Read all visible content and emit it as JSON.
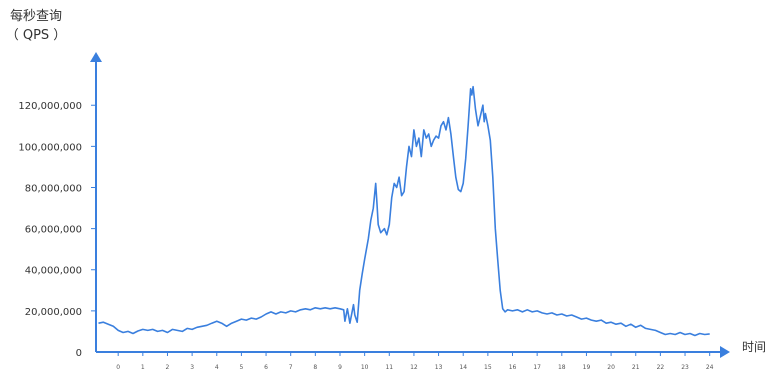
{
  "chart_data": {
    "type": "line",
    "title": "",
    "ylabel_line1": "每秒查询",
    "ylabel_line2": "（ QPS ）",
    "xlabel": "时间",
    "x_ticks": [
      "0",
      "1",
      "2",
      "3",
      "4",
      "5",
      "6",
      "7",
      "8",
      "9",
      "10",
      "11",
      "12",
      "13",
      "14",
      "15",
      "16",
      "17",
      "18",
      "19",
      "20",
      "21",
      "22",
      "23",
      "24"
    ],
    "y_ticks": [
      {
        "value": 0,
        "label": "0"
      },
      {
        "value": 20000000,
        "label": "20,000,000"
      },
      {
        "value": 40000000,
        "label": "40,000,000"
      },
      {
        "value": 60000000,
        "label": "60,000,000"
      },
      {
        "value": 80000000,
        "label": "80,000,000"
      },
      {
        "value": 100000000,
        "label": "100,000,000"
      },
      {
        "value": 120000000,
        "label": "120,000,000"
      }
    ],
    "xlim": [
      -0.9,
      24.5
    ],
    "ylim": [
      0,
      142000000
    ],
    "grid": false,
    "legend": "none",
    "series": [
      {
        "color": "#3a7fde",
        "points": [
          [
            -0.8,
            14000000
          ],
          [
            -0.6,
            14500000
          ],
          [
            -0.4,
            13500000
          ],
          [
            -0.2,
            12500000
          ],
          [
            0.0,
            10500000
          ],
          [
            0.2,
            9500000
          ],
          [
            0.4,
            10000000
          ],
          [
            0.6,
            9000000
          ],
          [
            0.8,
            10200000
          ],
          [
            1.0,
            11000000
          ],
          [
            1.2,
            10500000
          ],
          [
            1.4,
            11000000
          ],
          [
            1.6,
            10000000
          ],
          [
            1.8,
            10500000
          ],
          [
            2.0,
            9500000
          ],
          [
            2.2,
            11000000
          ],
          [
            2.4,
            10500000
          ],
          [
            2.6,
            10000000
          ],
          [
            2.8,
            11500000
          ],
          [
            3.0,
            11000000
          ],
          [
            3.2,
            12000000
          ],
          [
            3.4,
            12500000
          ],
          [
            3.6,
            13000000
          ],
          [
            3.8,
            14000000
          ],
          [
            4.0,
            15000000
          ],
          [
            4.2,
            14000000
          ],
          [
            4.4,
            12500000
          ],
          [
            4.6,
            14000000
          ],
          [
            4.8,
            15000000
          ],
          [
            5.0,
            16000000
          ],
          [
            5.2,
            15500000
          ],
          [
            5.4,
            16500000
          ],
          [
            5.6,
            16000000
          ],
          [
            5.8,
            17000000
          ],
          [
            6.0,
            18500000
          ],
          [
            6.2,
            19500000
          ],
          [
            6.4,
            18500000
          ],
          [
            6.6,
            19500000
          ],
          [
            6.8,
            19000000
          ],
          [
            7.0,
            20000000
          ],
          [
            7.2,
            19500000
          ],
          [
            7.4,
            20500000
          ],
          [
            7.6,
            21000000
          ],
          [
            7.8,
            20500000
          ],
          [
            8.0,
            21500000
          ],
          [
            8.2,
            21000000
          ],
          [
            8.4,
            21500000
          ],
          [
            8.6,
            21000000
          ],
          [
            8.8,
            21500000
          ],
          [
            9.0,
            21000000
          ],
          [
            9.15,
            20500000
          ],
          [
            9.2,
            15000000
          ],
          [
            9.3,
            21000000
          ],
          [
            9.4,
            14000000
          ],
          [
            9.55,
            23000000
          ],
          [
            9.6,
            18000000
          ],
          [
            9.7,
            14500000
          ],
          [
            9.8,
            30000000
          ],
          [
            9.9,
            38000000
          ],
          [
            10.0,
            45000000
          ],
          [
            10.15,
            55000000
          ],
          [
            10.25,
            64000000
          ],
          [
            10.35,
            70000000
          ],
          [
            10.45,
            82000000
          ],
          [
            10.5,
            72000000
          ],
          [
            10.55,
            62000000
          ],
          [
            10.65,
            58000000
          ],
          [
            10.8,
            60000000
          ],
          [
            10.9,
            57000000
          ],
          [
            11.0,
            62000000
          ],
          [
            11.1,
            75000000
          ],
          [
            11.2,
            82000000
          ],
          [
            11.3,
            80000000
          ],
          [
            11.4,
            85000000
          ],
          [
            11.5,
            76000000
          ],
          [
            11.6,
            78000000
          ],
          [
            11.7,
            90000000
          ],
          [
            11.8,
            100000000
          ],
          [
            11.9,
            95000000
          ],
          [
            12.0,
            108000000
          ],
          [
            12.1,
            100000000
          ],
          [
            12.2,
            104000000
          ],
          [
            12.3,
            95000000
          ],
          [
            12.4,
            108000000
          ],
          [
            12.5,
            104000000
          ],
          [
            12.6,
            106000000
          ],
          [
            12.7,
            100000000
          ],
          [
            12.8,
            103000000
          ],
          [
            12.9,
            105000000
          ],
          [
            13.0,
            104000000
          ],
          [
            13.1,
            110000000
          ],
          [
            13.2,
            112000000
          ],
          [
            13.3,
            108000000
          ],
          [
            13.4,
            114000000
          ],
          [
            13.5,
            106000000
          ],
          [
            13.6,
            95000000
          ],
          [
            13.7,
            85000000
          ],
          [
            13.8,
            79000000
          ],
          [
            13.9,
            78000000
          ],
          [
            14.0,
            82000000
          ],
          [
            14.1,
            94000000
          ],
          [
            14.2,
            110000000
          ],
          [
            14.3,
            128000000
          ],
          [
            14.35,
            125000000
          ],
          [
            14.4,
            129000000
          ],
          [
            14.5,
            118000000
          ],
          [
            14.6,
            110000000
          ],
          [
            14.7,
            115000000
          ],
          [
            14.8,
            120000000
          ],
          [
            14.85,
            112000000
          ],
          [
            14.9,
            116000000
          ],
          [
            15.0,
            110000000
          ],
          [
            15.1,
            103000000
          ],
          [
            15.2,
            85000000
          ],
          [
            15.3,
            60000000
          ],
          [
            15.4,
            45000000
          ],
          [
            15.5,
            30000000
          ],
          [
            15.6,
            21000000
          ],
          [
            15.7,
            19500000
          ],
          [
            15.8,
            20500000
          ],
          [
            16.0,
            20000000
          ],
          [
            16.2,
            20500000
          ],
          [
            16.4,
            19500000
          ],
          [
            16.6,
            20500000
          ],
          [
            16.8,
            19500000
          ],
          [
            17.0,
            20000000
          ],
          [
            17.2,
            19000000
          ],
          [
            17.4,
            18500000
          ],
          [
            17.6,
            19000000
          ],
          [
            17.8,
            18000000
          ],
          [
            18.0,
            18500000
          ],
          [
            18.2,
            17500000
          ],
          [
            18.4,
            18000000
          ],
          [
            18.6,
            17000000
          ],
          [
            18.8,
            16000000
          ],
          [
            19.0,
            16500000
          ],
          [
            19.2,
            15500000
          ],
          [
            19.4,
            15000000
          ],
          [
            19.6,
            15500000
          ],
          [
            19.8,
            14000000
          ],
          [
            20.0,
            14500000
          ],
          [
            20.2,
            13500000
          ],
          [
            20.4,
            14000000
          ],
          [
            20.6,
            12500000
          ],
          [
            20.8,
            13500000
          ],
          [
            21.0,
            12000000
          ],
          [
            21.2,
            13000000
          ],
          [
            21.4,
            11500000
          ],
          [
            21.6,
            11000000
          ],
          [
            21.8,
            10500000
          ],
          [
            22.0,
            9500000
          ],
          [
            22.2,
            8500000
          ],
          [
            22.4,
            9000000
          ],
          [
            22.6,
            8500000
          ],
          [
            22.8,
            9500000
          ],
          [
            23.0,
            8500000
          ],
          [
            23.2,
            9000000
          ],
          [
            23.4,
            8000000
          ],
          [
            23.6,
            9000000
          ],
          [
            23.8,
            8500000
          ],
          [
            24.0,
            8800000
          ]
        ]
      }
    ]
  }
}
